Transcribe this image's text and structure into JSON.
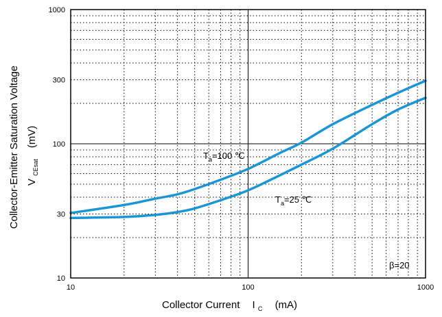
{
  "chart_data": {
    "type": "line",
    "xscale": "log",
    "yscale": "log",
    "xlim": [
      10,
      1000
    ],
    "ylim": [
      10,
      1000
    ],
    "grid": true,
    "xticks": [
      "10",
      "100",
      "1000"
    ],
    "yticks": [
      "10",
      "30",
      "100",
      "300",
      "1000"
    ],
    "ytick_values": [
      10,
      30,
      100,
      300,
      1000
    ],
    "xlabel": {
      "main": "Collector Current",
      "symbol": "I",
      "subscript": "C",
      "unit": "(mA)"
    },
    "ylabel": {
      "line1": "Collector-Emitter Saturation Voltage",
      "symbol": "V",
      "subscript": "CEsat",
      "unit": "(mV)"
    },
    "series": [
      {
        "label": {
          "prefix": "T",
          "subscript": "a",
          "suffix": "=100 ℃"
        },
        "color": "#1b95d6",
        "x": [
          10,
          20,
          30,
          40,
          50,
          70,
          100,
          150,
          200,
          300,
          500,
          700,
          1000
        ],
        "y": [
          30.5,
          35,
          39,
          42,
          46,
          54,
          65,
          85,
          102,
          140,
          195,
          240,
          295
        ]
      },
      {
        "label": {
          "prefix": "T",
          "subscript": "a",
          "suffix": "=25 ℃"
        },
        "color": "#1b95d6",
        "x": [
          10,
          20,
          30,
          40,
          50,
          70,
          100,
          150,
          200,
          300,
          500,
          700,
          1000
        ],
        "y": [
          28,
          28.5,
          29.5,
          31,
          33,
          38,
          45,
          58,
          70,
          92,
          140,
          180,
          220
        ]
      }
    ],
    "annotations": [
      {
        "text": "β=20"
      }
    ]
  }
}
